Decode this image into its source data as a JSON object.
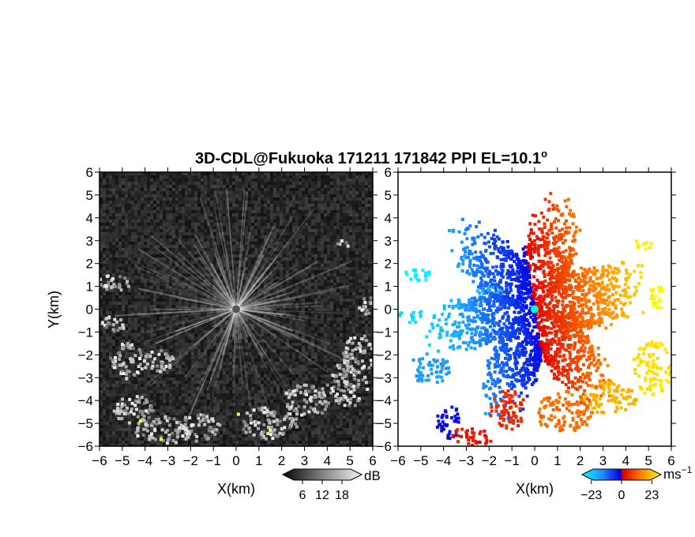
{
  "title": "3D-CDL@Fukuoka 171211 171842 PPI EL=10.1",
  "title_degree": "o",
  "chart_data": [
    {
      "panel": "left",
      "type": "heatmap",
      "quantity": "SNR",
      "colormap": "grayscale",
      "xlabel": "X(km)",
      "ylabel": "Y(km)",
      "xlim": [
        -6,
        6
      ],
      "ylim": [
        -6,
        6
      ],
      "xticks": [
        "−6",
        "−5",
        "−4",
        "−3",
        "−2",
        "−1",
        "0",
        "1",
        "2",
        "3",
        "4",
        "5",
        "6"
      ],
      "yticks": [
        "6",
        "5",
        "4",
        "3",
        "2",
        "1",
        "0",
        "−1",
        "−2",
        "−3",
        "−4",
        "−5",
        "−6"
      ],
      "colorbar": {
        "unit": "dB",
        "ticks": [
          "6",
          "12",
          "18"
        ],
        "tick_values": [
          6,
          12,
          18
        ],
        "range": [
          0,
          24
        ]
      }
    },
    {
      "panel": "right",
      "type": "heatmap",
      "quantity": "Doppler velocity",
      "colormap": "blue-red diverging",
      "xlabel": "X(km)",
      "xlim": [
        -6,
        6
      ],
      "ylim": [
        -6,
        6
      ],
      "xticks": [
        "−6",
        "−5",
        "−4",
        "−3",
        "−2",
        "−1",
        "0",
        "1",
        "2",
        "3",
        "4",
        "5",
        "6"
      ],
      "yticks": [
        "6",
        "5",
        "4",
        "3",
        "2",
        "1",
        "0",
        "−1",
        "−2",
        "−3",
        "−4",
        "−5",
        "−6"
      ],
      "colorbar": {
        "unit": "ms",
        "unit_exponent": "−1",
        "ticks": [
          "−23",
          "0",
          "23"
        ],
        "tick_values": [
          -23,
          0,
          23
        ],
        "range": [
          -30,
          30
        ]
      }
    }
  ]
}
